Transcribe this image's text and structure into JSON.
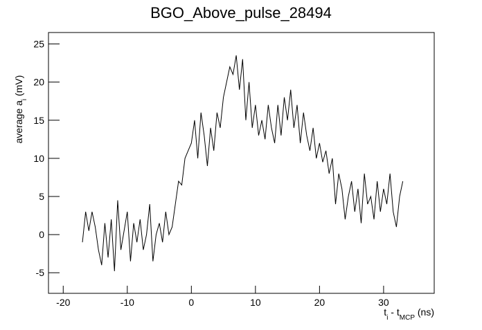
{
  "chart_data": {
    "type": "line",
    "title": "BGO_Above_pulse_28494",
    "y_label_parts": [
      {
        "text": "average a"
      },
      {
        "text": "i",
        "sub": true
      },
      {
        "text": " (mV)"
      }
    ],
    "x_label_parts": [
      {
        "text": "t"
      },
      {
        "text": "i",
        "sub": true
      },
      {
        "text": " - t"
      },
      {
        "text": "MCP",
        "sub": true
      },
      {
        "text": " (ns)"
      }
    ],
    "color": "#000000",
    "xlim": [
      -22.3,
      37.9
    ],
    "ylim": [
      -7.7,
      26.5
    ],
    "xticks": [
      -20,
      -10,
      0,
      10,
      20,
      30
    ],
    "yticks": [
      -5,
      0,
      5,
      10,
      15,
      20,
      25
    ],
    "x": [
      -17,
      -16.5,
      -16,
      -15.5,
      -15,
      -14.5,
      -14,
      -13.5,
      -13,
      -12.5,
      -12,
      -11.5,
      -11,
      -10.5,
      -10,
      -9.5,
      -9,
      -8.5,
      -8,
      -7.5,
      -7,
      -6.5,
      -6,
      -5.5,
      -5,
      -4.5,
      -4,
      -3.5,
      -3,
      -2.5,
      -2,
      -1.5,
      -1,
      -0.5,
      0,
      0.5,
      1,
      1.5,
      2,
      2.5,
      3,
      3.5,
      4,
      4.5,
      5,
      5.5,
      6,
      6.5,
      7,
      7.5,
      8,
      8.5,
      9,
      9.5,
      10,
      10.5,
      11,
      11.5,
      12,
      12.5,
      13,
      13.5,
      14,
      14.5,
      15,
      15.5,
      16,
      16.5,
      17,
      17.5,
      18,
      18.5,
      19,
      19.5,
      20,
      20.5,
      21,
      21.5,
      22,
      22.5,
      23,
      23.5,
      24,
      24.5,
      25,
      25.5,
      26,
      26.5,
      27,
      27.5,
      28,
      28.5,
      29,
      29.5,
      30,
      30.5,
      31,
      31.5,
      32,
      32.5,
      33
    ],
    "values": [
      -1,
      3,
      0.5,
      3,
      1,
      -2,
      -4,
      1.5,
      -3,
      2,
      -4.8,
      4.5,
      -2,
      0.5,
      3,
      -3.5,
      1.5,
      -1,
      2,
      -2,
      0,
      4,
      -3.5,
      0,
      1.5,
      -1,
      3,
      0,
      1,
      4,
      7,
      6.5,
      10,
      11,
      12,
      15,
      10,
      16,
      13,
      9,
      14,
      11,
      16,
      14,
      18,
      20,
      22,
      21,
      23.5,
      19,
      23,
      15,
      20,
      14,
      17,
      13,
      15,
      12.5,
      17,
      14,
      12,
      17,
      13,
      18,
      15,
      19,
      14,
      17,
      12,
      16,
      13,
      11,
      14,
      10,
      12,
      9.5,
      11,
      8,
      10,
      4,
      8,
      6,
      2,
      5,
      7,
      3,
      6,
      1.5,
      8,
      4,
      5,
      2,
      7,
      3,
      6,
      4,
      8,
      3,
      1,
      5,
      7
    ]
  }
}
